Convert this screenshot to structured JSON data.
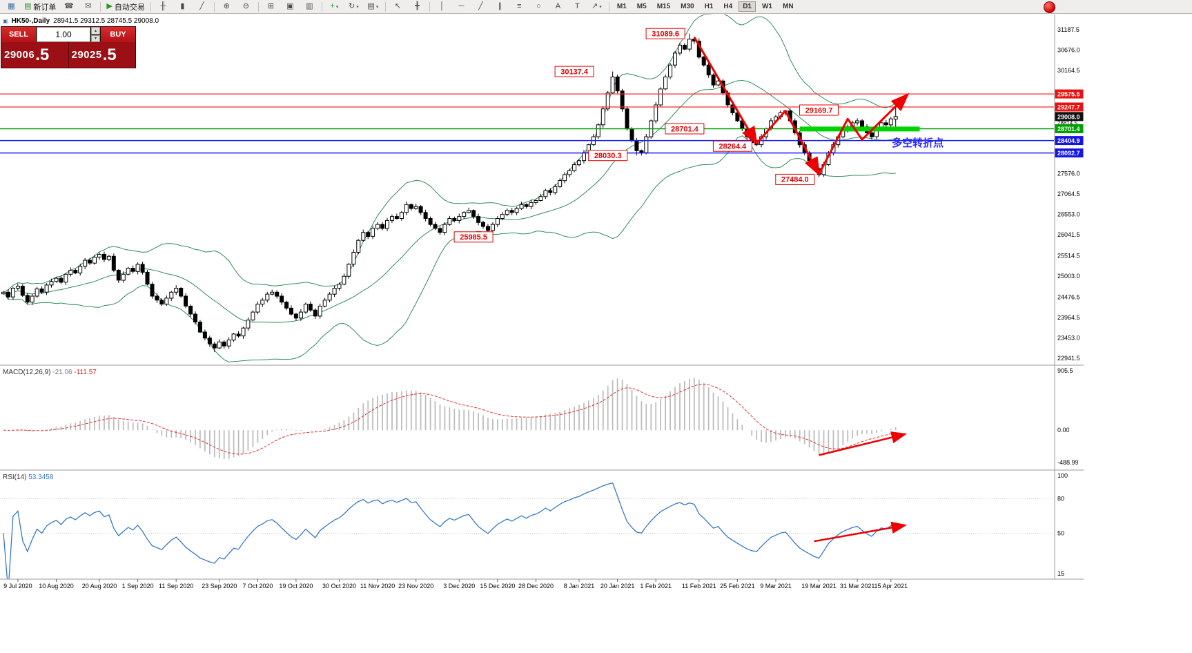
{
  "header": {
    "title": "HK50-,Daily",
    "ohlc": "28941.5 29312.5 28745.5 29008.0"
  },
  "icons": {
    "spin_up": "▴",
    "spin_down": "▾",
    "title_icon": "▣"
  },
  "toolbar": {
    "items": [
      {
        "name": "charts-profile-icon",
        "glyph": "▦",
        "color": "#3a6ea5"
      },
      {
        "name": "new-order-button",
        "glyph": "▤",
        "color": "#2e8b2e",
        "label": "新订单"
      },
      {
        "name": "mobile-app-icon",
        "glyph": "☎",
        "color": "#555555"
      },
      {
        "name": "chat-icon",
        "glyph": "✉",
        "color": "#555555"
      },
      {
        "name": "sep"
      },
      {
        "name": "autotrade-button",
        "glyph": "▶",
        "color": "#1f9d1f",
        "label": "自动交易"
      },
      {
        "name": "sep"
      },
      {
        "name": "bar-chart-icon",
        "glyph": "╫"
      },
      {
        "name": "candlestick-chart-icon",
        "glyph": "▮"
      },
      {
        "name": "line-chart-icon",
        "glyph": "╱"
      },
      {
        "name": "sep"
      },
      {
        "name": "zoom-in-icon",
        "glyph": "⊕"
      },
      {
        "name": "zoom-out-icon",
        "glyph": "⊖"
      },
      {
        "name": "sep"
      },
      {
        "name": "tile-windows-icon",
        "glyph": "⊞"
      },
      {
        "name": "cascade-windows-icon",
        "glyph": "▣"
      },
      {
        "name": "arrange-windows-icon",
        "glyph": "▥"
      },
      {
        "name": "sep"
      },
      {
        "name": "add-indicator-button",
        "glyph": "+",
        "color": "#1f9d1f",
        "dropdown": true
      },
      {
        "name": "auto-scroll-icon",
        "glyph": "↻",
        "dropdown": true
      },
      {
        "name": "templates-icon",
        "glyph": "▤",
        "dropdown": true
      },
      {
        "name": "sep"
      },
      {
        "name": "cursor-icon",
        "glyph": "↖"
      },
      {
        "name": "crosshair-icon",
        "glyph": "╋"
      },
      {
        "name": "sep"
      },
      {
        "name": "vertical-line-icon",
        "glyph": "│"
      },
      {
        "name": "horizontal-line-icon",
        "glyph": "─"
      },
      {
        "name": "trendline-icon",
        "glyph": "╱"
      },
      {
        "name": "channel-icon",
        "glyph": "∥"
      },
      {
        "name": "fibonacci-icon",
        "glyph": "≡"
      },
      {
        "name": "ellipse-icon",
        "glyph": "○"
      },
      {
        "name": "text-icon",
        "glyph": "A"
      },
      {
        "name": "label-icon",
        "glyph": "T"
      },
      {
        "name": "arrows-icon",
        "glyph": "↗",
        "dropdown": true
      },
      {
        "name": "sep"
      }
    ],
    "timeframes": [
      "M1",
      "M5",
      "M15",
      "M30",
      "H1",
      "H4",
      "D1",
      "W1",
      "MN"
    ],
    "active_timeframe": "D1"
  },
  "trade_panel": {
    "sell_label": "SELL",
    "buy_label": "BUY",
    "volume": "1.00",
    "sell_price": "29006",
    "sell_frac": ".5",
    "buy_price": "29025",
    "buy_frac": ".5"
  },
  "chart_data": {
    "type": "candlestick",
    "symbol": "HK50-",
    "period": "Daily",
    "current_ohlc": {
      "open": 28941.5,
      "high": 29312.5,
      "low": 28745.5,
      "close": 29008.0
    },
    "closes": [
      24600,
      24480,
      24700,
      24750,
      24520,
      24350,
      24500,
      24680,
      24600,
      24780,
      24870,
      24950,
      24850,
      25050,
      25150,
      25080,
      25250,
      25400,
      25330,
      25480,
      25550,
      25420,
      25500,
      25150,
      24900,
      25050,
      25200,
      25120,
      25300,
      25100,
      24800,
      24500,
      24400,
      24300,
      24450,
      24600,
      24700,
      24500,
      24250,
      24050,
      23850,
      23600,
      23450,
      23300,
      23200,
      23350,
      23250,
      23400,
      23550,
      23500,
      23700,
      23900,
      24100,
      24300,
      24400,
      24550,
      24600,
      24500,
      24350,
      24200,
      24050,
      23950,
      24100,
      24300,
      24150,
      24000,
      24250,
      24400,
      24550,
      24700,
      24800,
      25000,
      25300,
      25600,
      25900,
      26100,
      26000,
      26200,
      26300,
      26200,
      26400,
      26500,
      26450,
      26600,
      26800,
      26700,
      26750,
      26600,
      26450,
      26300,
      26200,
      26100,
      26300,
      26450,
      26400,
      26500,
      26600,
      26650,
      26500,
      26350,
      26250,
      26150,
      26300,
      26450,
      26550,
      26650,
      26600,
      26700,
      26800,
      26750,
      26850,
      26900,
      27000,
      27150,
      27100,
      27250,
      27400,
      27550,
      27650,
      27800,
      27900,
      28100,
      28300,
      28500,
      28800,
      29200,
      29600,
      30000,
      29650,
      29200,
      28700,
      28400,
      28150,
      28100,
      28500,
      28900,
      29300,
      29700,
      30000,
      30300,
      30600,
      30800,
      30700,
      30950,
      30900,
      30500,
      30300,
      30050,
      29800,
      29900,
      29600,
      29300,
      29100,
      28900,
      28700,
      28500,
      28350,
      28300,
      28500,
      28700,
      28900,
      29000,
      29100,
      29150,
      28900,
      28600,
      28300,
      28100,
      27900,
      27700,
      27550,
      27800,
      28100,
      28300,
      28500,
      28650,
      28750,
      28850,
      28900,
      28750,
      28600,
      28500,
      28700,
      28850,
      28800,
      28950,
      29008
    ],
    "special_points": {
      "44": {
        "low": 23100
      },
      "127": {
        "high": 30137.4
      },
      "132": {
        "low": 28030.3
      },
      "143": {
        "high": 31089.6
      },
      "157": {
        "low": 28264.4
      },
      "163": {
        "high": 29169.7
      },
      "170": {
        "low": 27484.0
      },
      "186": {
        "open": 28941.5,
        "high": 29312.5,
        "low": 28745.5
      }
    },
    "price_axis": {
      "max": 31187.5,
      "min": 22941.5,
      "ticks": [
        31187.5,
        30676.0,
        30164.5,
        27576.0,
        27064.5,
        26553.0,
        26041.5,
        25514.5,
        25003.0,
        24476.5,
        23964.5,
        23453.0,
        22941.5
      ],
      "small_tick": "28814.5",
      "small_tick_price": 28814.5
    },
    "badges": [
      {
        "text": "29575.5",
        "price": 29575.5,
        "bg": "#e81010"
      },
      {
        "text": "29247.7",
        "price": 29247.7,
        "bg": "#e81010"
      },
      {
        "text": "29008.0",
        "price": 29008.0,
        "bg": "#101010"
      },
      {
        "text": "28701.4",
        "price": 28701.4,
        "bg": "#00a000"
      },
      {
        "text": "28404.9",
        "price": 28404.9,
        "bg": "#1414e6"
      },
      {
        "text": "28092.7",
        "price": 28092.7,
        "bg": "#1414e6"
      }
    ],
    "levels": [
      {
        "price": 29575.5,
        "color": "#ff2a2a",
        "width": 1.2
      },
      {
        "price": 29247.7,
        "color": "#ff2a2a",
        "width": 1.2
      },
      {
        "price": 28701.4,
        "color": "#00a000",
        "width": 1.4
      },
      {
        "price": 28404.9,
        "color": "#1a1aff",
        "width": 1.5
      },
      {
        "price": 28092.7,
        "color": "#1a1aff",
        "width": 1.5
      }
    ],
    "x_labels": [
      {
        "i": 3,
        "t": "9 Jul 2020"
      },
      {
        "i": 11,
        "t": "10 Aug 2020"
      },
      {
        "i": 20,
        "t": "20 Aug 2020"
      },
      {
        "i": 28,
        "t": "1 Sep 2020"
      },
      {
        "i": 36,
        "t": "11 Sep 2020"
      },
      {
        "i": 45,
        "t": "23 Sep 2020"
      },
      {
        "i": 53,
        "t": "7 Oct 2020"
      },
      {
        "i": 61,
        "t": "19 Oct 2020"
      },
      {
        "i": 70,
        "t": "30 Oct 2020"
      },
      {
        "i": 78,
        "t": "11 Nov 2020"
      },
      {
        "i": 86,
        "t": "23 Nov 2020"
      },
      {
        "i": 95,
        "t": "3 Dec 2020"
      },
      {
        "i": 103,
        "t": "15 Dec 2020"
      },
      {
        "i": 111,
        "t": "28 Dec 2020"
      },
      {
        "i": 120,
        "t": "8 Jan 2021"
      },
      {
        "i": 128,
        "t": "20 Jan 2021"
      },
      {
        "i": 136,
        "t": "1 Feb 2021"
      },
      {
        "i": 145,
        "t": "11 Feb 2021"
      },
      {
        "i": 153,
        "t": "25 Feb 2021"
      },
      {
        "i": 161,
        "t": "9 Mar 2021"
      },
      {
        "i": 170,
        "t": "19 Mar 2021"
      },
      {
        "i": 178,
        "t": "31 Mar 2021"
      },
      {
        "i": 185,
        "t": "15 Apr 2021"
      }
    ],
    "bollinger": {
      "period": 20,
      "deviation": 2,
      "color": "#2e8b57"
    }
  },
  "annotations": {
    "callouts": [
      {
        "text": "31089.6",
        "i": 138,
        "anchor_price": 31089.6
      },
      {
        "text": "30137.4",
        "i": 119,
        "anchor_price": 30137.4
      },
      {
        "text": "29169.7",
        "i": 170,
        "anchor_price": 29169.7
      },
      {
        "text": "28701.4",
        "i": 142,
        "anchor_price": 28701.4
      },
      {
        "text": "28264.4",
        "i": 152,
        "anchor_price": 28264.4
      },
      {
        "text": "28030.3",
        "i": 126,
        "anchor_price": 28030.3
      },
      {
        "text": "27484.0",
        "i": 165,
        "anchor_price": 27430.0
      },
      {
        "text": "25985.5",
        "i": 98,
        "anchor_price": 25985.5
      }
    ],
    "zigzag_color": "#ee0000",
    "zigzag": [
      [
        [
          144,
          31000
        ],
        [
          157,
          28330
        ]
      ],
      [
        [
          157,
          28330
        ],
        [
          163,
          29150
        ],
        [
          170,
          27560
        ]
      ],
      [
        [
          170,
          27560
        ],
        [
          176,
          28950
        ],
        [
          179,
          28430
        ],
        [
          188.5,
          29560
        ]
      ]
    ],
    "support_zone": {
      "from_i": 166,
      "to_i": 191,
      "price": 28695,
      "thickness": 7,
      "color": "#00d300"
    },
    "turning_point_label": {
      "text": "多空转折点",
      "i": 185.2,
      "price": 28330,
      "color": "#2a2aff"
    },
    "macd_arrow": {
      "from": [
        170,
        -380
      ],
      "to": [
        188,
        -60
      ],
      "color": "#ee0000"
    },
    "rsi_arrow": {
      "from": [
        169,
        43
      ],
      "to": [
        188,
        57
      ],
      "color": "#ee0000"
    }
  },
  "macd_panel": {
    "label": "MACD(12,26,9)",
    "value_main": "-21.06",
    "value_signal": "-111.57",
    "axis": [
      {
        "t": "905.5",
        "v": 905.5
      },
      {
        "t": "0.00",
        "v": 0
      },
      {
        "t": "-488.99",
        "v": -488.99
      }
    ],
    "histogram_color": "#bdbdbd",
    "signal_color": "#e03030"
  },
  "rsi_panel": {
    "label": "RSI(14)",
    "value": "53.3458",
    "axis": [
      {
        "t": "100",
        "v": 100
      },
      {
        "t": "80",
        "v": 80
      },
      {
        "t": "50",
        "v": 50
      },
      {
        "t": "15",
        "v": 15
      }
    ],
    "levels": [
      80,
      50
    ],
    "line_color": "#3577c9"
  }
}
